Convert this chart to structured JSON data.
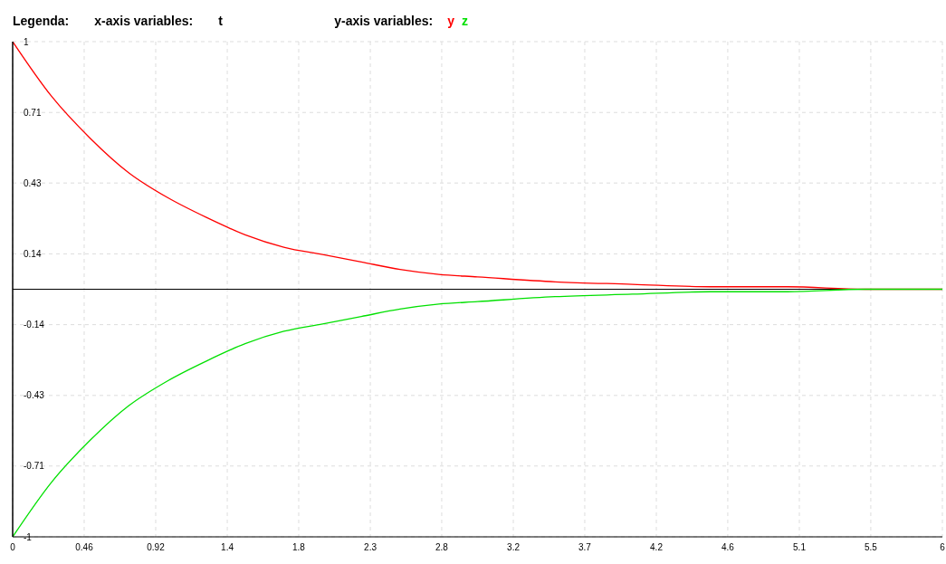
{
  "chart_data": {
    "type": "line",
    "title": "Legenda:",
    "annotations": [
      "x-axis variables:"
    ],
    "xlabel": "t",
    "legend_title": "y-axis variables:",
    "legend": "top",
    "x": [
      0,
      0.25,
      0.5,
      0.75,
      1,
      1.25,
      1.5,
      1.75,
      2,
      2.25,
      2.5,
      2.75,
      3,
      3.5,
      4,
      4.5,
      5,
      5.5,
      6
    ],
    "series": [
      {
        "name": "y",
        "color": "#ff0000",
        "values": [
          1,
          0.78,
          0.61,
          0.47,
          0.37,
          0.29,
          0.22,
          0.17,
          0.14,
          0.11,
          0.08,
          0.06,
          0.05,
          0.03,
          0.02,
          0.01,
          0.01,
          0.0,
          0.0
        ]
      },
      {
        "name": "z",
        "color": "#00e000",
        "values": [
          -1,
          -0.78,
          -0.61,
          -0.47,
          -0.37,
          -0.29,
          -0.22,
          -0.17,
          -0.14,
          -0.11,
          -0.08,
          -0.06,
          -0.05,
          -0.03,
          -0.02,
          -0.01,
          -0.01,
          0.0,
          0.0
        ]
      }
    ],
    "xlim": [
      0,
      6
    ],
    "xticks": [
      0,
      {
        "value": 0.4615,
        "label": "0.46"
      },
      {
        "value": 0.923,
        "label": "0.92"
      },
      {
        "value": 1.385,
        "label": "1.4"
      },
      {
        "value": 1.846,
        "label": "1.8"
      },
      {
        "value": 2.308,
        "label": "2.3"
      },
      {
        "value": 2.769,
        "label": "2.8"
      },
      {
        "value": 3.231,
        "label": "3.2"
      },
      {
        "value": 3.692,
        "label": "3.7"
      },
      {
        "value": 4.154,
        "label": "4.2"
      },
      {
        "value": 4.615,
        "label": "4.6"
      },
      {
        "value": 5.077,
        "label": "5.1"
      },
      {
        "value": 5.538,
        "label": "5.5"
      },
      6
    ],
    "ylim": [
      -1,
      1
    ],
    "yticks": [
      -1,
      {
        "value": -0.714,
        "label": "-0.71"
      },
      {
        "value": -0.429,
        "label": "-0.43"
      },
      {
        "value": -0.143,
        "label": "-0.14"
      },
      {
        "value": 0.143,
        "label": "0.14"
      },
      {
        "value": 0.429,
        "label": "0.43"
      },
      {
        "value": 0.714,
        "label": "0.71"
      },
      1
    ],
    "ref_lines": [
      {
        "axis": "y",
        "value": 0,
        "color": "#000000"
      }
    ],
    "grid": true,
    "marker": "none",
    "line_style": "solid"
  }
}
